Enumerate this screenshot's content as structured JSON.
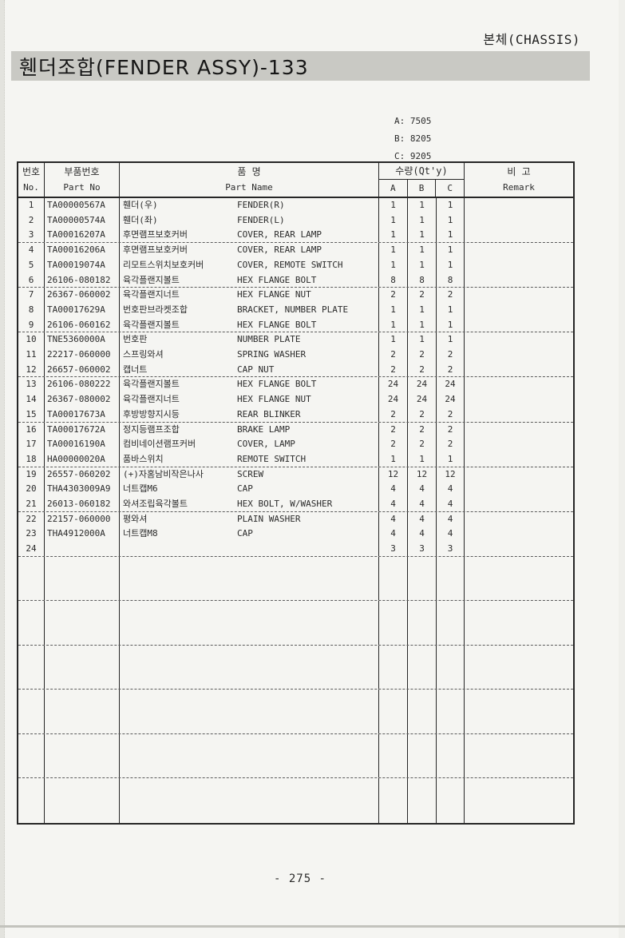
{
  "page": {
    "corner_label": "본체(CHASSIS)",
    "title": "휀더조합(FENDER ASSY)-133",
    "page_number": "- 275 -"
  },
  "legend": {
    "a": "A: 7505",
    "b": "B: 8205",
    "c": "C: 9205"
  },
  "table": {
    "headers": {
      "no": {
        "kr": "번호",
        "en": "No."
      },
      "part_no": {
        "kr": "부품번호",
        "en": "Part No"
      },
      "name": {
        "kr": "품 명",
        "en": "Part Name"
      },
      "qty": {
        "label": "수량(Qt'y)",
        "cols": [
          "A",
          "B",
          "C"
        ]
      },
      "remark": {
        "kr": "비 고",
        "en": "Remark"
      }
    },
    "rows": [
      {
        "no": "1",
        "part_no": "TA00000567A",
        "name_kr": "휀더(우)",
        "name_en": "FENDER(R)",
        "a": "1",
        "b": "1",
        "c": "1",
        "remark": ""
      },
      {
        "no": "2",
        "part_no": "TA00000574A",
        "name_kr": "휀더(좌)",
        "name_en": "FENDER(L)",
        "a": "1",
        "b": "1",
        "c": "1",
        "remark": ""
      },
      {
        "no": "3",
        "part_no": "TA00016207A",
        "name_kr": "후면램프보호커버",
        "name_en": "COVER, REAR LAMP",
        "a": "1",
        "b": "1",
        "c": "1",
        "remark": ""
      },
      {
        "no": "4",
        "part_no": "TA00016206A",
        "name_kr": "후면램프보호커버",
        "name_en": "COVER, REAR LAMP",
        "a": "1",
        "b": "1",
        "c": "1",
        "remark": ""
      },
      {
        "no": "5",
        "part_no": "TA00019074A",
        "name_kr": "리모트스위치보호커버",
        "name_en": "COVER, REMOTE SWITCH",
        "a": "1",
        "b": "1",
        "c": "1",
        "remark": ""
      },
      {
        "no": "6",
        "part_no": "26106-080182",
        "name_kr": "육각플랜지볼트",
        "name_en": "HEX FLANGE BOLT",
        "a": "8",
        "b": "8",
        "c": "8",
        "remark": ""
      },
      {
        "no": "7",
        "part_no": "26367-060002",
        "name_kr": "육각플랜지너트",
        "name_en": "HEX FLANGE NUT",
        "a": "2",
        "b": "2",
        "c": "2",
        "remark": ""
      },
      {
        "no": "8",
        "part_no": "TA00017629A",
        "name_kr": "번호판브라켓조합",
        "name_en": "BRACKET, NUMBER PLATE",
        "a": "1",
        "b": "1",
        "c": "1",
        "remark": ""
      },
      {
        "no": "9",
        "part_no": "26106-060162",
        "name_kr": "육각플랜지볼트",
        "name_en": "HEX FLANGE BOLT",
        "a": "1",
        "b": "1",
        "c": "1",
        "remark": ""
      },
      {
        "no": "10",
        "part_no": "TNE5360000A",
        "name_kr": "번호판",
        "name_en": "NUMBER PLATE",
        "a": "1",
        "b": "1",
        "c": "1",
        "remark": ""
      },
      {
        "no": "11",
        "part_no": "22217-060000",
        "name_kr": "스프링와셔",
        "name_en": "SPRING WASHER",
        "a": "2",
        "b": "2",
        "c": "2",
        "remark": ""
      },
      {
        "no": "12",
        "part_no": "26657-060002",
        "name_kr": "캡너트",
        "name_en": "CAP NUT",
        "a": "2",
        "b": "2",
        "c": "2",
        "remark": ""
      },
      {
        "no": "13",
        "part_no": "26106-080222",
        "name_kr": "육각플랜지볼트",
        "name_en": "HEX FLANGE BOLT",
        "a": "24",
        "b": "24",
        "c": "24",
        "remark": ""
      },
      {
        "no": "14",
        "part_no": "26367-080002",
        "name_kr": "육각플랜지너트",
        "name_en": "HEX FLANGE NUT",
        "a": "24",
        "b": "24",
        "c": "24",
        "remark": ""
      },
      {
        "no": "15",
        "part_no": "TA00017673A",
        "name_kr": "후방방향지시등",
        "name_en": "REAR BLINKER",
        "a": "2",
        "b": "2",
        "c": "2",
        "remark": ""
      },
      {
        "no": "16",
        "part_no": "TA00017672A",
        "name_kr": "정지등램프조합",
        "name_en": "BRAKE LAMP",
        "a": "2",
        "b": "2",
        "c": "2",
        "remark": ""
      },
      {
        "no": "17",
        "part_no": "TA00016190A",
        "name_kr": "컴비네이션램프커버",
        "name_en": "COVER, LAMP",
        "a": "2",
        "b": "2",
        "c": "2",
        "remark": ""
      },
      {
        "no": "18",
        "part_no": "HA00000020A",
        "name_kr": "품바스위치",
        "name_en": "REMOTE SWITCH",
        "a": "1",
        "b": "1",
        "c": "1",
        "remark": ""
      },
      {
        "no": "19",
        "part_no": "26557-060202",
        "name_kr": "(+)자홈남비작은나사",
        "name_en": "SCREW",
        "a": "12",
        "b": "12",
        "c": "12",
        "remark": ""
      },
      {
        "no": "20",
        "part_no": "THA4303009A9",
        "name_kr": "너트캡M6",
        "name_en": "CAP",
        "a": "4",
        "b": "4",
        "c": "4",
        "remark": ""
      },
      {
        "no": "21",
        "part_no": "26013-060182",
        "name_kr": "와셔조립육각볼트",
        "name_en": "HEX BOLT, W/WASHER",
        "a": "4",
        "b": "4",
        "c": "4",
        "remark": ""
      },
      {
        "no": "22",
        "part_no": "22157-060000",
        "name_kr": "평와셔",
        "name_en": "PLAIN WASHER",
        "a": "4",
        "b": "4",
        "c": "4",
        "remark": ""
      },
      {
        "no": "23",
        "part_no": "THA4912000A",
        "name_kr": "너트캡M8",
        "name_en": "CAP",
        "a": "4",
        "b": "4",
        "c": "4",
        "remark": ""
      },
      {
        "no": "24",
        "part_no": "",
        "name_kr": "",
        "name_en": "",
        "a": "3",
        "b": "3",
        "c": "3",
        "remark": ""
      }
    ],
    "empty_sections": 6
  }
}
